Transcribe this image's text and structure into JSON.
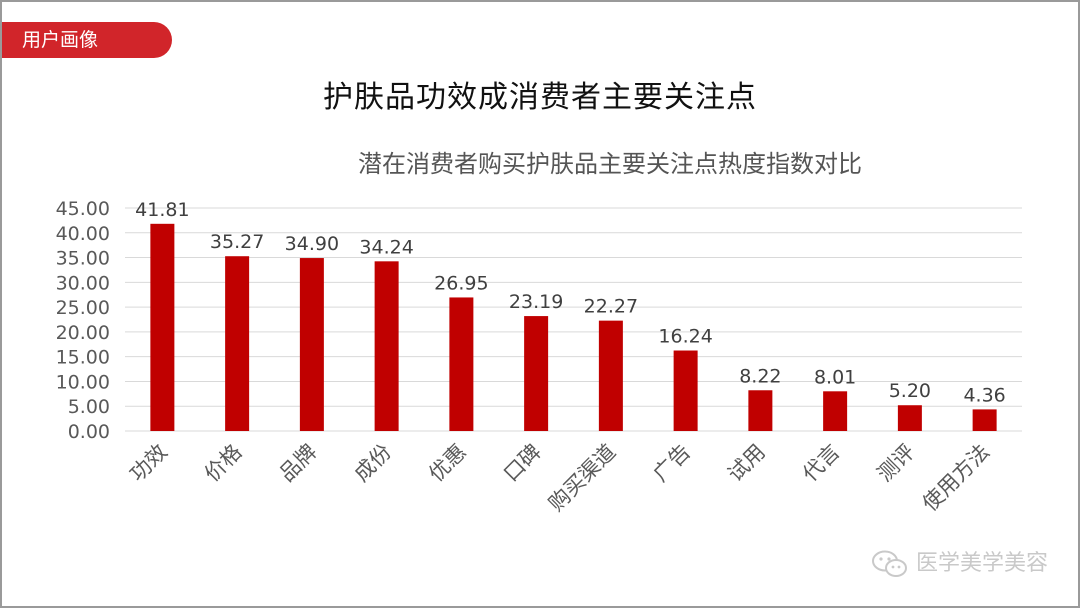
{
  "tag": "用户画像",
  "title": "护肤品功效成消费者主要关注点",
  "watermark": "医学美学美容",
  "colors": {
    "bar": "#c00000",
    "tag": "#d1252a"
  },
  "chart_data": {
    "type": "bar",
    "title": "潜在消费者购买护肤品主要关注点热度指数对比",
    "xlabel": "",
    "ylabel": "",
    "categories": [
      "功效",
      "价格",
      "品牌",
      "成份",
      "优惠",
      "口碑",
      "购买渠道",
      "广告",
      "试用",
      "代言",
      "测评",
      "使用方法"
    ],
    "values": [
      41.81,
      35.27,
      34.9,
      34.24,
      26.95,
      23.19,
      22.27,
      16.24,
      8.22,
      8.01,
      5.2,
      4.36
    ],
    "value_labels": [
      "41.81",
      "35.27",
      "34.90",
      "34.24",
      "26.95",
      "23.19",
      "22.27",
      "16.24",
      "8.22",
      "8.01",
      "5.20",
      "4.36"
    ],
    "yticks": [
      "0.00",
      "5.00",
      "10.00",
      "15.00",
      "20.00",
      "25.00",
      "30.00",
      "35.00",
      "40.00",
      "45.00"
    ],
    "ylim": [
      0,
      45
    ],
    "grid": true,
    "legend": "none"
  }
}
